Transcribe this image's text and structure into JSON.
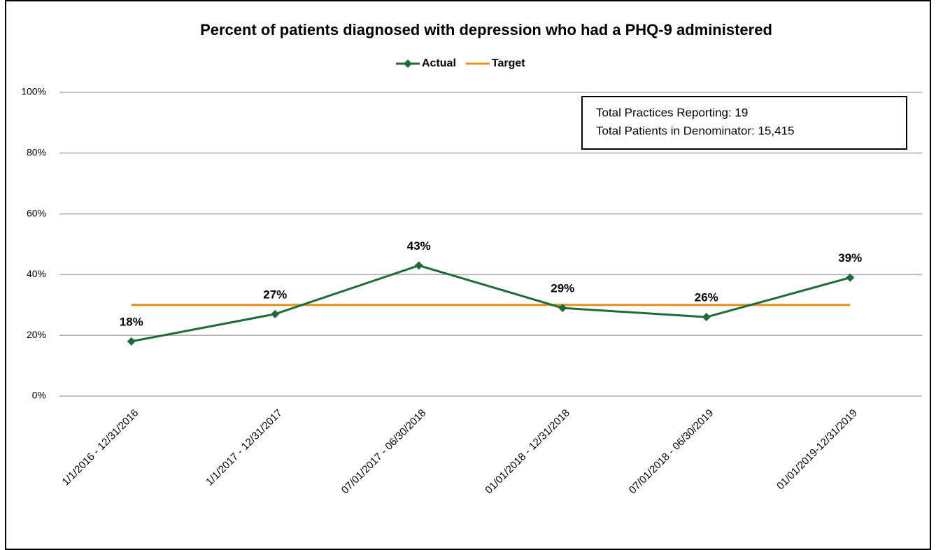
{
  "chart_data": {
    "type": "line",
    "title": "Percent of patients diagnosed with depression who had a PHQ-9 administered",
    "categories": [
      "1/1/2016 - 12/31/2016",
      "1/1/2017 - 12/31/2017",
      "07/01/2017 - 06/30/2018",
      "01/01/2018 - 12/31/2018",
      "07/01/2018 - 06/30/2019",
      "01/01/2019-12/31/2019"
    ],
    "series": [
      {
        "name": "Actual",
        "color": "#1e6b3a",
        "values": [
          18,
          27,
          43,
          29,
          26,
          39
        ],
        "value_labels": [
          "18%",
          "27%",
          "43%",
          "29%",
          "26%",
          "39%"
        ],
        "marker": "diamond"
      },
      {
        "name": "Target",
        "color": "#e8901f",
        "values": [
          30,
          30,
          30,
          30,
          30,
          30
        ]
      }
    ],
    "ylim": [
      0,
      100
    ],
    "yticks": [
      {
        "value": 0,
        "label": "0%"
      },
      {
        "value": 20,
        "label": "20%"
      },
      {
        "value": 40,
        "label": "40%"
      },
      {
        "value": 60,
        "label": "60%"
      },
      {
        "value": 80,
        "label": "80%"
      },
      {
        "value": 100,
        "label": "100%"
      }
    ],
    "grid": true,
    "legend": "top",
    "annotations": [
      "Total Practices Reporting: 19",
      "Total Patients in Denominator: 15,415"
    ]
  }
}
